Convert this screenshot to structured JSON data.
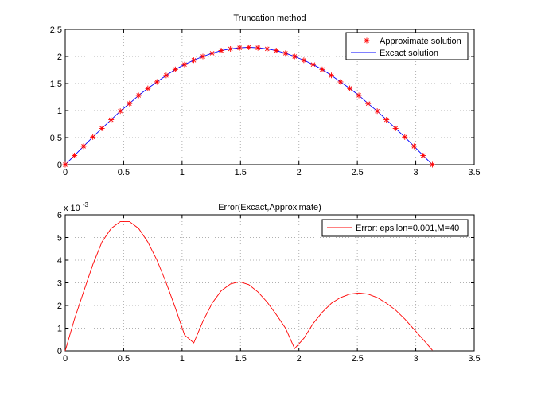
{
  "chart_data": [
    {
      "type": "line",
      "title": "Truncation method",
      "xlabel": "",
      "ylabel": "",
      "xlim": [
        0,
        3.5
      ],
      "ylim": [
        0,
        2.5
      ],
      "xticks": [
        "0",
        "0.5",
        "1",
        "1.5",
        "2",
        "2.5",
        "3",
        "3.5"
      ],
      "yticks": [
        "0",
        "0.5",
        "1",
        "1.5",
        "2",
        "2.5"
      ],
      "grid": true,
      "legend_position": "top-right",
      "x": [
        0,
        0.079,
        0.157,
        0.236,
        0.314,
        0.393,
        0.471,
        0.55,
        0.628,
        0.707,
        0.785,
        0.864,
        0.942,
        1.021,
        1.1,
        1.178,
        1.257,
        1.335,
        1.414,
        1.492,
        1.571,
        1.649,
        1.728,
        1.806,
        1.885,
        1.963,
        2.042,
        2.121,
        2.199,
        2.278,
        2.356,
        2.435,
        2.513,
        2.592,
        2.67,
        2.749,
        2.827,
        2.906,
        2.985,
        3.063,
        3.142
      ],
      "series": [
        {
          "name": "Approximate solution",
          "style": "marker",
          "marker": "*",
          "color": "#ff0000",
          "values": [
            0,
            0.17,
            0.34,
            0.51,
            0.67,
            0.83,
            0.99,
            1.13,
            1.28,
            1.41,
            1.53,
            1.65,
            1.76,
            1.85,
            1.93,
            2.0,
            2.06,
            2.11,
            2.14,
            2.16,
            2.17,
            2.16,
            2.14,
            2.11,
            2.06,
            2.0,
            1.93,
            1.85,
            1.76,
            1.65,
            1.53,
            1.41,
            1.28,
            1.13,
            0.99,
            0.83,
            0.67,
            0.51,
            0.34,
            0.17,
            0
          ]
        },
        {
          "name": "Excact solution",
          "style": "line",
          "color": "#0000ff",
          "values": [
            0,
            0.17,
            0.34,
            0.51,
            0.67,
            0.83,
            0.99,
            1.13,
            1.28,
            1.41,
            1.53,
            1.65,
            1.76,
            1.85,
            1.93,
            2.0,
            2.06,
            2.11,
            2.14,
            2.16,
            2.17,
            2.16,
            2.14,
            2.11,
            2.06,
            2.0,
            1.93,
            1.85,
            1.76,
            1.65,
            1.53,
            1.41,
            1.28,
            1.13,
            0.99,
            0.83,
            0.67,
            0.51,
            0.34,
            0.17,
            0
          ]
        }
      ]
    },
    {
      "type": "line",
      "title": "Error(Excact,Approximate)",
      "xlabel": "",
      "ylabel": "",
      "y_multiplier": "x 10",
      "y_multiplier_exp": "-3",
      "xlim": [
        0,
        3.5
      ],
      "ylim": [
        0,
        6
      ],
      "xticks": [
        "0",
        "0.5",
        "1",
        "1.5",
        "2",
        "2.5",
        "3",
        "3.5"
      ],
      "yticks": [
        "0",
        "1",
        "2",
        "3",
        "4",
        "5",
        "6"
      ],
      "grid": true,
      "legend_position": "top-right",
      "x": [
        0,
        0.079,
        0.157,
        0.236,
        0.314,
        0.393,
        0.471,
        0.55,
        0.628,
        0.707,
        0.785,
        0.864,
        0.942,
        1.021,
        1.1,
        1.178,
        1.257,
        1.335,
        1.414,
        1.492,
        1.571,
        1.649,
        1.728,
        1.806,
        1.885,
        1.963,
        2.042,
        2.121,
        2.199,
        2.278,
        2.356,
        2.435,
        2.513,
        2.592,
        2.67,
        2.749,
        2.827,
        2.906,
        2.985,
        3.063,
        3.142
      ],
      "series": [
        {
          "name": "Error: epsilon=0.001,M=40",
          "style": "line",
          "color": "#ff0000",
          "values": [
            0,
            1.4,
            2.6,
            3.8,
            4.8,
            5.4,
            5.7,
            5.7,
            5.4,
            4.8,
            4.0,
            3.0,
            1.9,
            0.7,
            0.35,
            1.3,
            2.1,
            2.65,
            2.95,
            3.05,
            2.92,
            2.6,
            2.15,
            1.6,
            1.0,
            0.1,
            0.55,
            1.2,
            1.7,
            2.1,
            2.35,
            2.5,
            2.55,
            2.5,
            2.35,
            2.1,
            1.8,
            1.4,
            0.95,
            0.5,
            0.03
          ]
        }
      ]
    }
  ]
}
